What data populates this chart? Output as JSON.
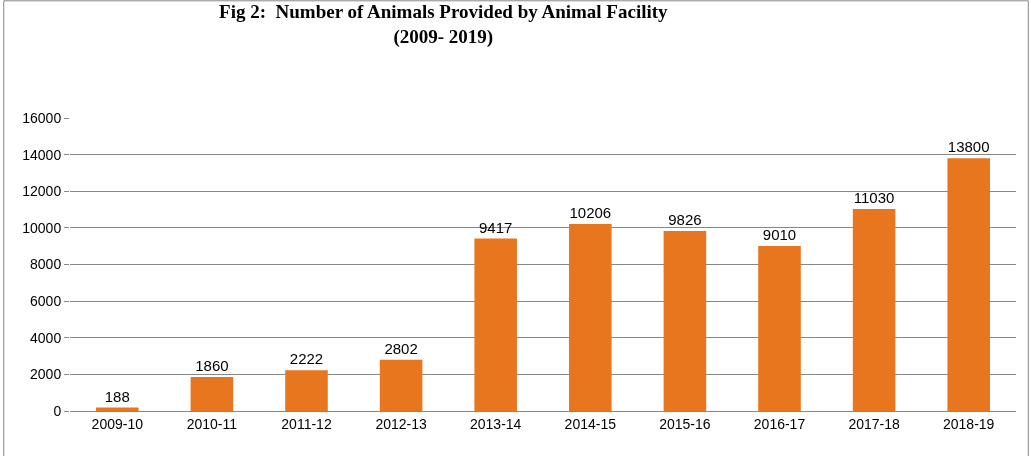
{
  "chart_data": {
    "type": "bar",
    "title": "Fig 2:  Number of Animals Provided by Animal Facility\n(2009- 2019)",
    "categories": [
      "2009-10",
      "2010-11",
      "2011-12",
      "2012-13",
      "2013-14",
      "2014-15",
      "2015-16",
      "2016-17",
      "2017-18",
      "2018-19"
    ],
    "values": [
      188,
      1860,
      2222,
      2802,
      9417,
      10206,
      9826,
      9010,
      11030,
      13800
    ],
    "color": "#e8761f",
    "ylim": [
      0,
      16000
    ],
    "yticks": [
      0,
      2000,
      4000,
      6000,
      8000,
      10000,
      12000,
      14000,
      16000
    ],
    "grid": "y",
    "data_labels": true,
    "legend": false
  }
}
